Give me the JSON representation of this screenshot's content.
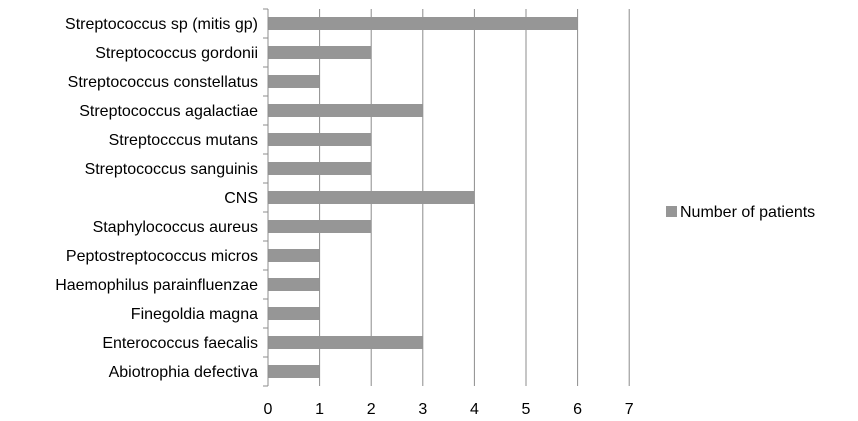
{
  "chart_data": {
    "type": "bar",
    "orientation": "horizontal",
    "categories": [
      "Streptococcus sp (mitis gp)",
      "Streptococcus gordonii",
      "Streptococcus constellatus",
      "Streptococcus agalactiae",
      "Streptocccus mutans",
      "Streptococcus sanguinis",
      "CNS",
      "Staphylococcus aureus",
      "Peptostreptococcus micros",
      "Haemophilus parainfluenzae",
      "Finegoldia magna",
      "Enterococcus faecalis",
      "Abiotrophia defectiva"
    ],
    "series": [
      {
        "name": "Number of patients",
        "values": [
          6,
          2,
          1,
          3,
          2,
          2,
          4,
          2,
          1,
          1,
          1,
          3,
          1
        ],
        "color": "#969696"
      }
    ],
    "xlim": [
      0,
      7
    ],
    "xticks": [
      "0",
      "1",
      "2",
      "3",
      "4",
      "5",
      "6",
      "7"
    ],
    "grid": "vertical",
    "legend_position": "right",
    "gridline_color": "#8c8c8c",
    "axis_color": "#8c8c8c"
  }
}
